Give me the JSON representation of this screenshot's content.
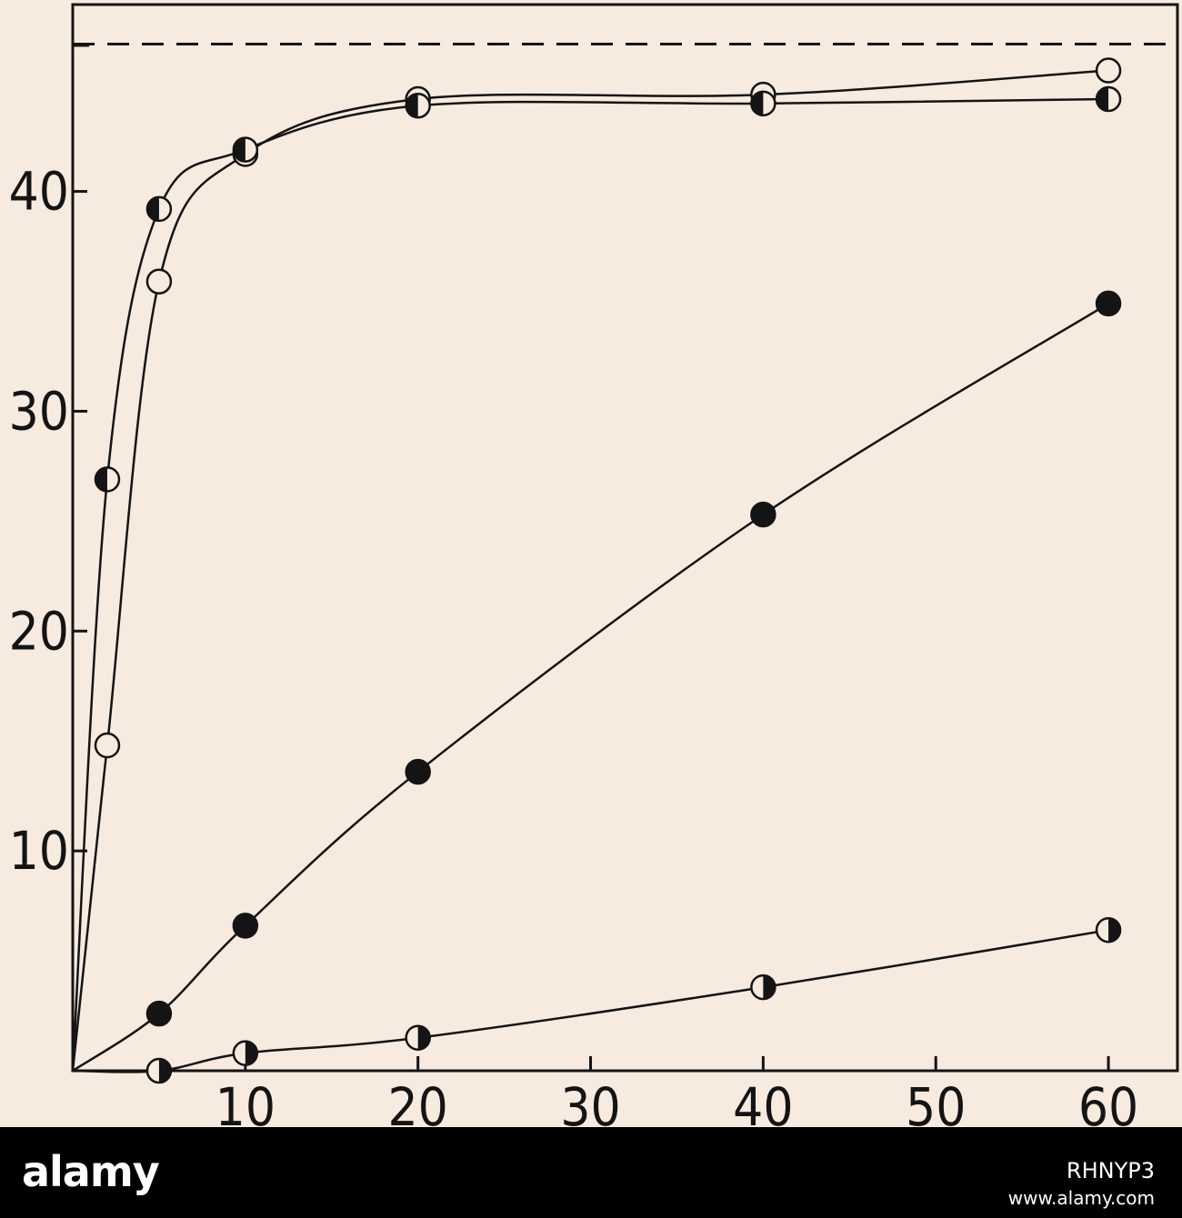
{
  "colors": {
    "background": "#f7eadf",
    "ink": "#141414",
    "footer": "#000000",
    "footer_text": "#ffffff"
  },
  "chart_data": {
    "type": "line",
    "title": "",
    "xlabel": "",
    "ylabel": "",
    "xlim": [
      0,
      64
    ],
    "ylim": [
      0,
      48.5
    ],
    "x_ticks": [
      10,
      20,
      30,
      40,
      50,
      60
    ],
    "y_ticks": [
      10,
      20,
      30,
      40
    ],
    "x_tick_labels": [
      "10",
      "20",
      "30",
      "40",
      "50",
      "60"
    ],
    "y_tick_labels": [
      "10",
      "20",
      "30",
      "40"
    ],
    "grid": false,
    "legend": "none",
    "reference_line": {
      "y": 46.7,
      "style": "dashed"
    },
    "series": [
      {
        "marker": "open-circle",
        "points": [
          [
            2,
            14.8
          ],
          [
            5,
            35.9
          ],
          [
            10,
            41.7
          ],
          [
            20,
            44.2
          ],
          [
            40,
            44.4
          ],
          [
            60,
            45.5
          ]
        ]
      },
      {
        "marker": "half-filled-left-circle",
        "points": [
          [
            2,
            26.9
          ],
          [
            5,
            39.2
          ],
          [
            10,
            41.9
          ],
          [
            20,
            43.9
          ],
          [
            40,
            44.0
          ],
          [
            60,
            44.2
          ]
        ]
      },
      {
        "marker": "filled-circle",
        "points": [
          [
            0,
            0
          ],
          [
            5,
            2.6
          ],
          [
            10,
            6.6
          ],
          [
            20,
            13.6
          ],
          [
            40,
            25.3
          ],
          [
            60,
            34.9
          ]
        ]
      },
      {
        "marker": "half-filled-right-circle",
        "points": [
          [
            0,
            0
          ],
          [
            5,
            0
          ],
          [
            10,
            0.8
          ],
          [
            20,
            1.5
          ],
          [
            40,
            3.8
          ],
          [
            60,
            6.4
          ]
        ]
      }
    ]
  },
  "watermark": {
    "text": "alamy",
    "image_id": "RHNYP3",
    "url": "www.alamy.com"
  }
}
